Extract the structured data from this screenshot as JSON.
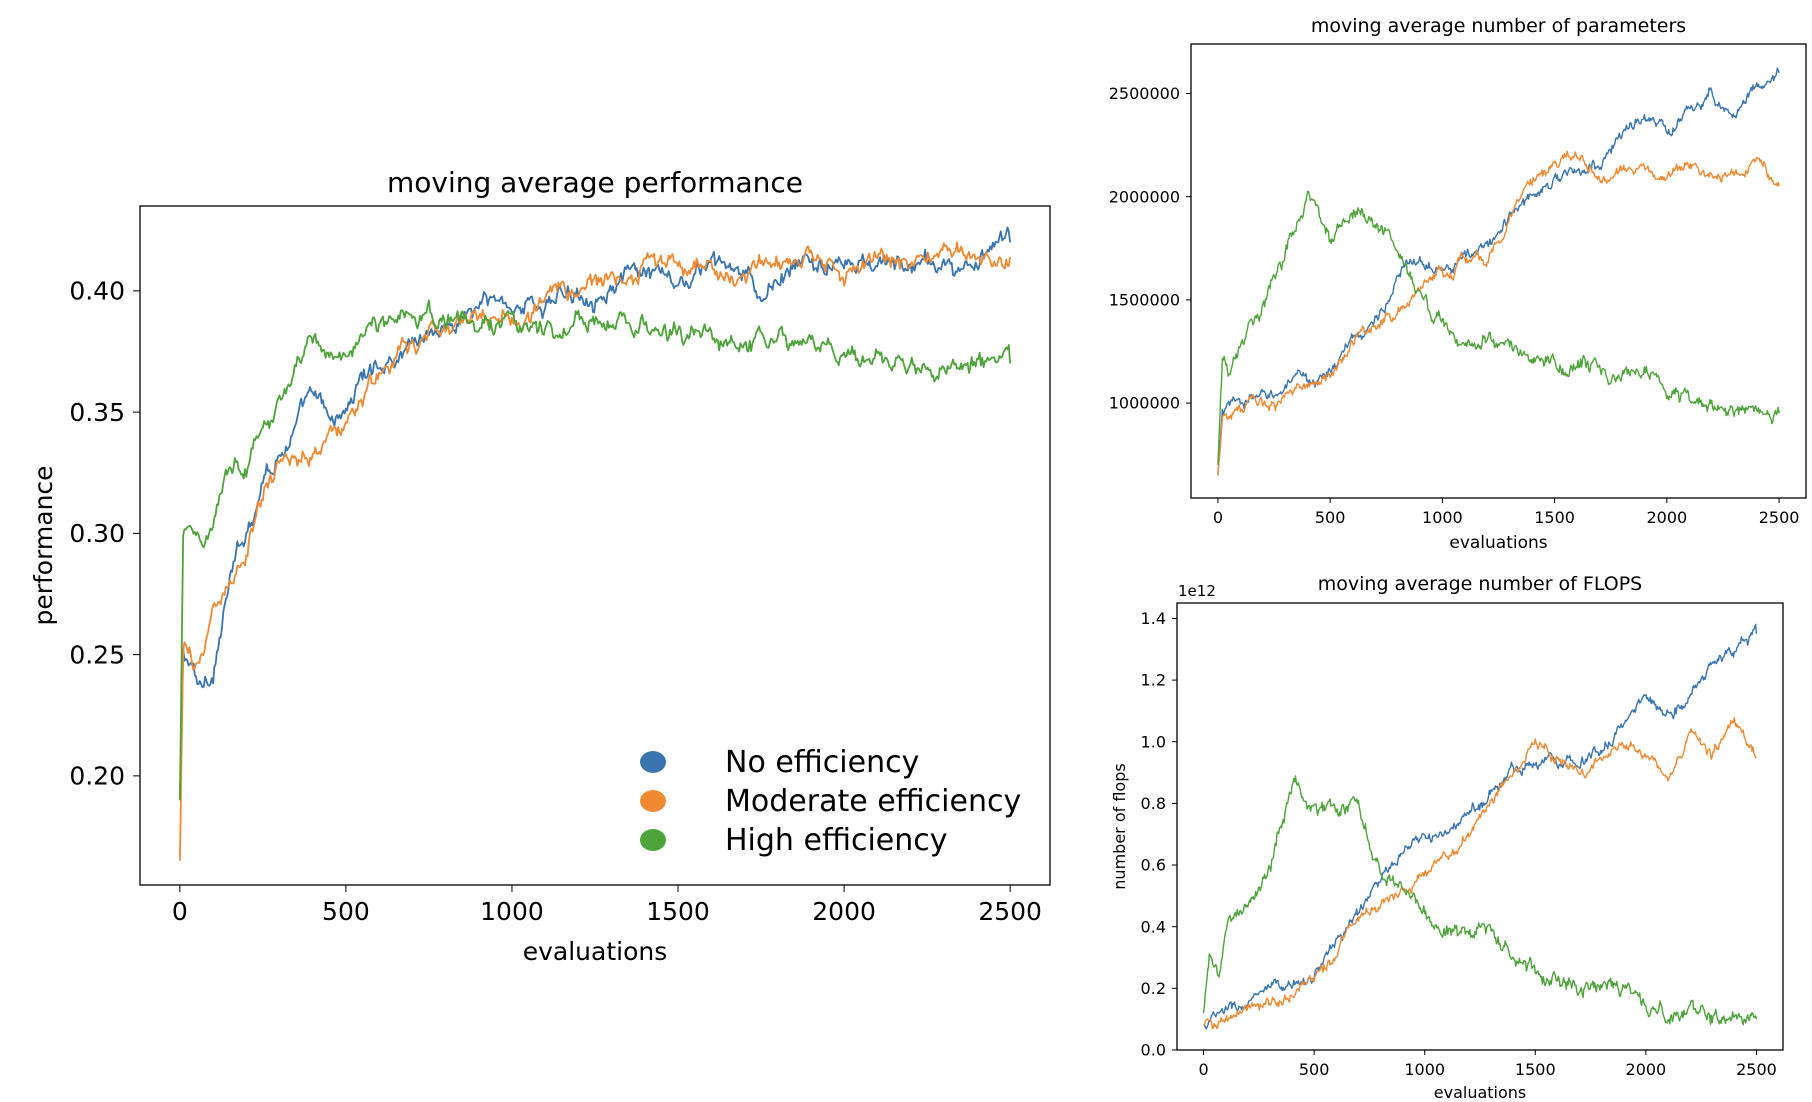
{
  "legend": {
    "placement": "lower-right",
    "entries": [
      {
        "name": "No efficiency",
        "color": "#3a75b0"
      },
      {
        "name": "Moderate efficiency",
        "color": "#ef8a33"
      },
      {
        "name": "High efficiency",
        "color": "#4ea33a"
      }
    ]
  },
  "chart_data": [
    {
      "id": "performance",
      "type": "line",
      "title": "moving average performance",
      "xlabel": "evaluations",
      "ylabel": "performance",
      "xlim": [
        -120,
        2620
      ],
      "ylim": [
        0.155,
        0.435
      ],
      "xticks": [
        0,
        500,
        1000,
        1500,
        2000,
        2500
      ],
      "yticks": [
        0.2,
        0.25,
        0.3,
        0.35,
        0.4
      ],
      "ytick_labels": [
        "0.20",
        "0.25",
        "0.30",
        "0.35",
        "0.40"
      ],
      "grid": false,
      "series": [
        {
          "name": "No efficiency",
          "color": "#3a75b0",
          "noise": 0.004,
          "x": [
            0,
            10,
            30,
            60,
            100,
            150,
            200,
            250,
            300,
            350,
            400,
            450,
            500,
            550,
            600,
            650,
            700,
            750,
            800,
            850,
            900,
            950,
            1000,
            1100,
            1200,
            1300,
            1400,
            1500,
            1600,
            1700,
            1750,
            1800,
            1900,
            2000,
            2100,
            2200,
            2300,
            2400,
            2500
          ],
          "y": [
            0.19,
            0.25,
            0.245,
            0.235,
            0.245,
            0.28,
            0.3,
            0.325,
            0.335,
            0.345,
            0.355,
            0.345,
            0.35,
            0.365,
            0.37,
            0.375,
            0.38,
            0.385,
            0.385,
            0.39,
            0.393,
            0.395,
            0.395,
            0.395,
            0.4,
            0.405,
            0.405,
            0.4,
            0.41,
            0.405,
            0.393,
            0.405,
            0.41,
            0.41,
            0.41,
            0.41,
            0.41,
            0.41,
            0.42
          ]
        },
        {
          "name": "Moderate efficiency",
          "color": "#ef8a33",
          "noise": 0.004,
          "x": [
            0,
            10,
            40,
            70,
            100,
            150,
            200,
            250,
            300,
            350,
            400,
            450,
            500,
            550,
            600,
            650,
            700,
            750,
            800,
            900,
            1000,
            1100,
            1200,
            1300,
            1400,
            1500,
            1600,
            1700,
            1800,
            1900,
            2000,
            2100,
            2200,
            2300,
            2400,
            2500
          ],
          "y": [
            0.165,
            0.25,
            0.245,
            0.25,
            0.27,
            0.28,
            0.29,
            0.315,
            0.325,
            0.33,
            0.335,
            0.34,
            0.345,
            0.355,
            0.365,
            0.37,
            0.375,
            0.38,
            0.385,
            0.39,
            0.39,
            0.395,
            0.4,
            0.405,
            0.41,
            0.41,
            0.41,
            0.405,
            0.41,
            0.41,
            0.41,
            0.41,
            0.41,
            0.415,
            0.415,
            0.414
          ]
        },
        {
          "name": "High efficiency",
          "color": "#4ea33a",
          "noise": 0.004,
          "x": [
            0,
            10,
            30,
            60,
            100,
            150,
            200,
            250,
            300,
            350,
            400,
            450,
            500,
            550,
            600,
            650,
            700,
            750,
            800,
            900,
            1000,
            1100,
            1200,
            1300,
            1400,
            1500,
            1600,
            1700,
            1800,
            1900,
            2000,
            2100,
            2200,
            2300,
            2400,
            2500
          ],
          "y": [
            0.19,
            0.3,
            0.305,
            0.3,
            0.305,
            0.335,
            0.33,
            0.345,
            0.355,
            0.365,
            0.375,
            0.375,
            0.375,
            0.385,
            0.385,
            0.385,
            0.39,
            0.395,
            0.39,
            0.385,
            0.39,
            0.385,
            0.385,
            0.385,
            0.385,
            0.38,
            0.38,
            0.375,
            0.375,
            0.38,
            0.375,
            0.375,
            0.37,
            0.37,
            0.368,
            0.37
          ]
        }
      ]
    },
    {
      "id": "parameters",
      "type": "line",
      "title": "moving average number of parameters",
      "xlabel": "evaluations",
      "ylabel": "",
      "xlim": [
        -120,
        2620
      ],
      "ylim": [
        540000,
        2740000
      ],
      "xticks": [
        0,
        500,
        1000,
        1500,
        2000,
        2500
      ],
      "yticks": [
        1000000,
        1500000,
        2000000,
        2500000
      ],
      "ytick_labels": [
        "1000000",
        "1500000",
        "2000000",
        "2500000"
      ],
      "grid": false,
      "series": [
        {
          "name": "No efficiency",
          "color": "#3a75b0",
          "noise": 28000,
          "x": [
            0,
            20,
            100,
            200,
            300,
            400,
            500,
            600,
            700,
            800,
            900,
            1000,
            1100,
            1200,
            1300,
            1400,
            1500,
            1600,
            1700,
            1800,
            1900,
            2000,
            2100,
            2200,
            2300,
            2400,
            2500
          ],
          "y": [
            650000,
            950000,
            1000000,
            1020000,
            1080000,
            1100000,
            1150000,
            1300000,
            1400000,
            1600000,
            1700000,
            1700000,
            1700000,
            1750000,
            1900000,
            2000000,
            2100000,
            2100000,
            2150000,
            2300000,
            2400000,
            2300000,
            2400000,
            2500000,
            2400000,
            2550000,
            2600000
          ]
        },
        {
          "name": "Moderate efficiency",
          "color": "#ef8a33",
          "noise": 28000,
          "x": [
            0,
            20,
            100,
            200,
            300,
            400,
            500,
            600,
            700,
            800,
            900,
            1000,
            1100,
            1200,
            1300,
            1400,
            1500,
            1600,
            1700,
            1800,
            1900,
            2000,
            2100,
            2200,
            2300,
            2400,
            2500
          ],
          "y": [
            650000,
            950000,
            980000,
            980000,
            1030000,
            1070000,
            1150000,
            1300000,
            1380000,
            1450000,
            1550000,
            1650000,
            1700000,
            1700000,
            1900000,
            2050000,
            2150000,
            2200000,
            2100000,
            2100000,
            2150000,
            2100000,
            2150000,
            2100000,
            2100000,
            2200000,
            2050000
          ]
        },
        {
          "name": "High efficiency",
          "color": "#4ea33a",
          "noise": 35000,
          "x": [
            0,
            20,
            50,
            100,
            200,
            300,
            400,
            500,
            600,
            700,
            800,
            900,
            1000,
            1100,
            1200,
            1300,
            1400,
            1500,
            1600,
            1700,
            1800,
            1900,
            2000,
            2100,
            2200,
            2300,
            2400,
            2500
          ],
          "y": [
            700000,
            1200000,
            1150000,
            1350000,
            1500000,
            1700000,
            2050000,
            1750000,
            1900000,
            1900000,
            1700000,
            1500000,
            1400000,
            1300000,
            1300000,
            1300000,
            1250000,
            1200000,
            1150000,
            1150000,
            1100000,
            1100000,
            1050000,
            1000000,
            1000000,
            970000,
            950000,
            950000
          ]
        }
      ]
    },
    {
      "id": "flops",
      "type": "line",
      "title": "moving average number of FLOPS",
      "xlabel": "evaluations",
      "ylabel": "number of flops",
      "scale_label": "1e12",
      "xlim": [
        -120,
        2620
      ],
      "ylim": [
        0,
        1.45
      ],
      "xticks": [
        0,
        500,
        1000,
        1500,
        2000,
        2500
      ],
      "yticks": [
        0.0,
        0.2,
        0.4,
        0.6,
        0.8,
        1.0,
        1.2,
        1.4
      ],
      "ytick_labels": [
        "0.0",
        "0.2",
        "0.4",
        "0.6",
        "0.8",
        "1.0",
        "1.2",
        "1.4"
      ],
      "grid": false,
      "series": [
        {
          "name": "No efficiency",
          "color": "#3a75b0",
          "noise": 0.018,
          "x": [
            0,
            100,
            200,
            300,
            400,
            500,
            600,
            700,
            800,
            900,
            1000,
            1100,
            1200,
            1300,
            1400,
            1500,
            1600,
            1700,
            1800,
            1900,
            2000,
            2100,
            2200,
            2300,
            2400,
            2500
          ],
          "y": [
            0.08,
            0.12,
            0.15,
            0.18,
            0.2,
            0.25,
            0.35,
            0.45,
            0.55,
            0.62,
            0.68,
            0.7,
            0.75,
            0.85,
            0.9,
            0.95,
            0.95,
            0.95,
            0.98,
            1.05,
            1.15,
            1.1,
            1.15,
            1.25,
            1.3,
            1.35
          ]
        },
        {
          "name": "Moderate efficiency",
          "color": "#ef8a33",
          "noise": 0.018,
          "x": [
            0,
            100,
            200,
            300,
            400,
            500,
            600,
            700,
            800,
            900,
            1000,
            1100,
            1200,
            1300,
            1400,
            1500,
            1600,
            1700,
            1800,
            1900,
            2000,
            2100,
            2200,
            2300,
            2400,
            2500
          ],
          "y": [
            0.08,
            0.1,
            0.12,
            0.15,
            0.18,
            0.22,
            0.32,
            0.42,
            0.48,
            0.52,
            0.6,
            0.65,
            0.7,
            0.8,
            0.9,
            1.0,
            0.95,
            0.9,
            0.95,
            1.0,
            0.95,
            0.9,
            1.0,
            0.95,
            1.05,
            0.95
          ]
        },
        {
          "name": "High efficiency",
          "color": "#4ea33a",
          "noise": 0.025,
          "x": [
            0,
            30,
            70,
            100,
            200,
            300,
            400,
            500,
            600,
            700,
            800,
            900,
            1000,
            1100,
            1200,
            1300,
            1400,
            1500,
            1600,
            1700,
            1800,
            1900,
            2000,
            2100,
            2200,
            2300,
            2400,
            2500
          ],
          "y": [
            0.12,
            0.3,
            0.25,
            0.4,
            0.48,
            0.6,
            0.88,
            0.75,
            0.82,
            0.8,
            0.6,
            0.5,
            0.45,
            0.4,
            0.38,
            0.35,
            0.3,
            0.25,
            0.22,
            0.2,
            0.2,
            0.18,
            0.15,
            0.12,
            0.12,
            0.1,
            0.09,
            0.1
          ]
        }
      ]
    }
  ]
}
